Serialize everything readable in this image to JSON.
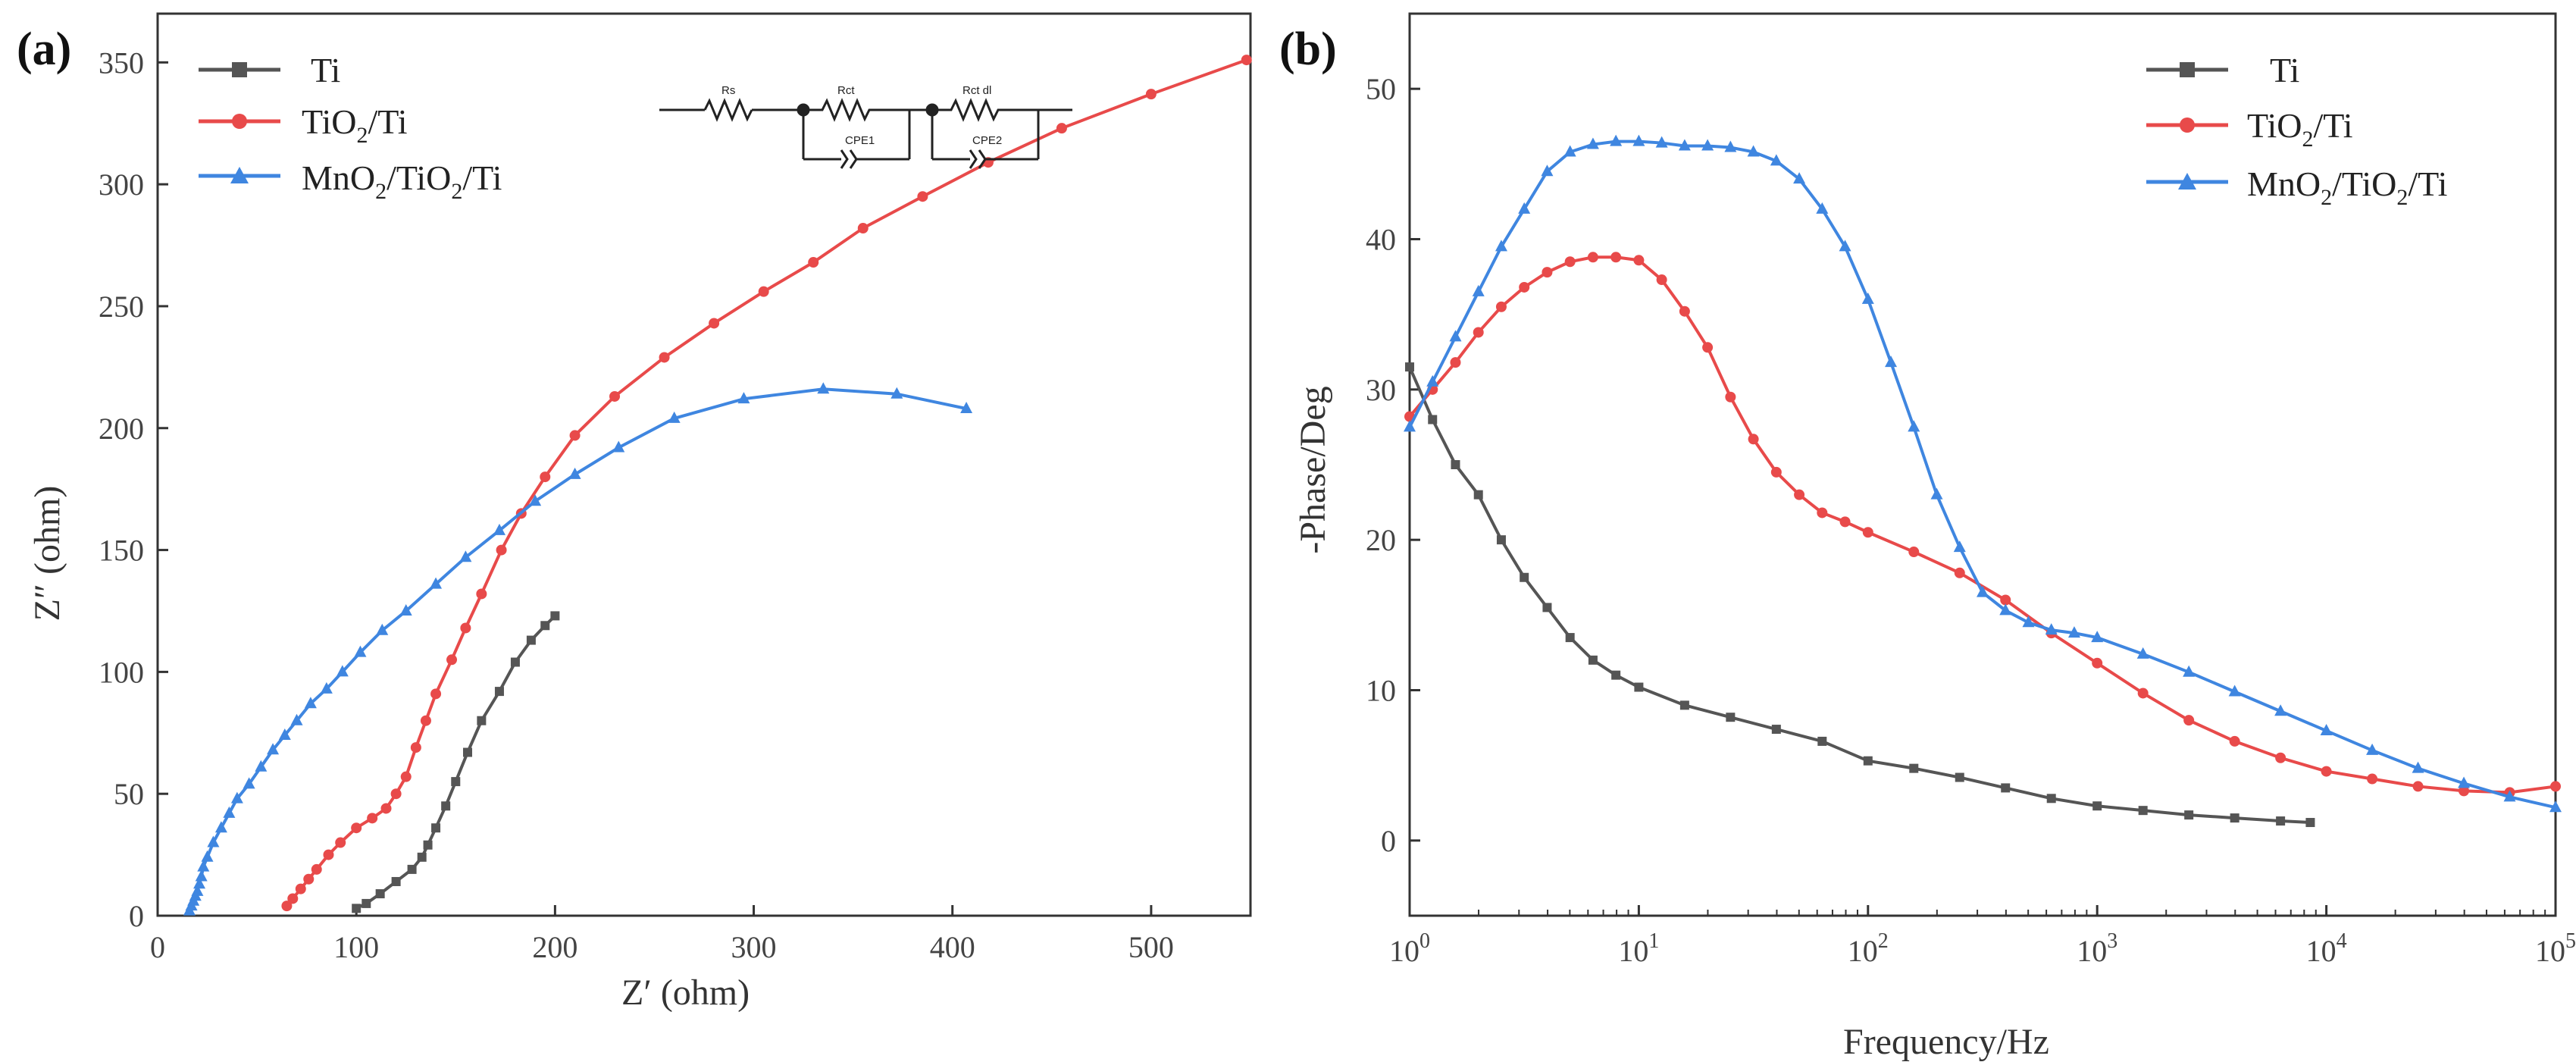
{
  "chart_data": [
    {
      "panel": "(a)",
      "type": "scatter",
      "subtype": "nyquist",
      "xlabel": "Z′ (ohm)",
      "ylabel": "Z″ (ohm)",
      "xlim": [
        0,
        550
      ],
      "ylim": [
        0,
        370
      ],
      "xticks": [
        "0",
        "100",
        "200",
        "300",
        "400",
        "500"
      ],
      "yticks": [
        "0",
        "50",
        "100",
        "150",
        "200",
        "250",
        "300",
        "350"
      ],
      "legend_position": "top-left",
      "circuit": {
        "labels": [
          "Rs",
          "Rct",
          "Rct dl",
          "CPE1",
          "CPE2"
        ]
      },
      "series": [
        {
          "name": "Ti",
          "name_base": "Ti",
          "name_rest": "",
          "color": "#555555",
          "marker": "square",
          "x": [
            100,
            105,
            112,
            120,
            128,
            133,
            136,
            140,
            145,
            150,
            156,
            163,
            172,
            180,
            188,
            195,
            200
          ],
          "y": [
            3,
            5,
            9,
            14,
            19,
            24,
            29,
            36,
            45,
            55,
            67,
            80,
            92,
            104,
            113,
            119,
            123
          ]
        },
        {
          "name": "TiO2/Ti",
          "name_base": "TiO",
          "name_rest": "/Ti",
          "color": "#e84a4a",
          "marker": "circle",
          "x": [
            65,
            68,
            72,
            76,
            80,
            86,
            92,
            100,
            108,
            115,
            120,
            125,
            130,
            135,
            140,
            148,
            155,
            163,
            173,
            183,
            195,
            210,
            230,
            255,
            280,
            305,
            330,
            355,
            385,
            418,
            455,
            500,
            548
          ],
          "y": [
            4,
            7,
            11,
            15,
            19,
            25,
            30,
            36,
            40,
            44,
            50,
            57,
            69,
            80,
            91,
            105,
            118,
            132,
            150,
            165,
            180,
            197,
            213,
            229,
            243,
            256,
            268,
            282,
            295,
            309,
            323,
            337,
            351
          ]
        },
        {
          "name": "MnO2/TiO2/Ti",
          "name_base": "MnO",
          "name_rest": "/TiO",
          "name_end": "/Ti",
          "color": "#3f86e0",
          "marker": "triangle",
          "x": [
            16,
            17,
            18,
            19,
            20,
            21,
            22,
            23,
            25,
            28,
            32,
            36,
            40,
            46,
            52,
            58,
            64,
            70,
            77,
            85,
            93,
            102,
            113,
            125,
            140,
            155,
            172,
            190,
            210,
            232,
            260,
            295,
            335,
            372,
            407
          ],
          "y": [
            2,
            4,
            6,
            8,
            10,
            13,
            16,
            20,
            24,
            30,
            36,
            42,
            48,
            54,
            61,
            68,
            74,
            80,
            87,
            93,
            100,
            108,
            117,
            125,
            136,
            147,
            158,
            170,
            181,
            192,
            204,
            212,
            216,
            214,
            208
          ]
        }
      ]
    },
    {
      "panel": "(b)",
      "type": "line",
      "subtype": "bode-phase",
      "xlabel": "Frequency/Hz",
      "ylabel": "-Phase/Deg",
      "xscale": "log",
      "xlim": [
        1,
        100000
      ],
      "ylim": [
        -5,
        55
      ],
      "xticks": [
        {
          "base": "10",
          "exp": "0"
        },
        {
          "base": "10",
          "exp": "1"
        },
        {
          "base": "10",
          "exp": "2"
        },
        {
          "base": "10",
          "exp": "3"
        },
        {
          "base": "10",
          "exp": "4"
        },
        {
          "base": "10",
          "exp": "5"
        }
      ],
      "yticks": [
        "0",
        "10",
        "20",
        "30",
        "40",
        "50"
      ],
      "legend_position": "top-right",
      "series": [
        {
          "name": "Ti",
          "color": "#555555",
          "marker": "square",
          "logf": [
            0,
            0.1,
            0.2,
            0.3,
            0.4,
            0.5,
            0.6,
            0.7,
            0.8,
            0.9,
            1.0,
            1.2,
            1.4,
            1.6,
            1.8,
            2.0,
            2.2,
            2.4,
            2.6,
            2.8,
            3.0,
            3.2,
            3.4,
            3.6,
            3.8,
            3.93
          ],
          "values": [
            31.5,
            28,
            25,
            23,
            20,
            17.5,
            15.5,
            13.5,
            12,
            11,
            10.2,
            9,
            8.2,
            7.4,
            6.6,
            5.3,
            4.8,
            4.2,
            3.5,
            2.8,
            2.3,
            2.0,
            1.7,
            1.5,
            1.3,
            1.2
          ]
        },
        {
          "name": "TiO2/Ti",
          "color": "#e84a4a",
          "marker": "circle",
          "logf": [
            0,
            0.1,
            0.2,
            0.3,
            0.4,
            0.5,
            0.6,
            0.7,
            0.8,
            0.9,
            1.0,
            1.1,
            1.2,
            1.3,
            1.4,
            1.5,
            1.6,
            1.7,
            1.8,
            1.9,
            2.0,
            2.2,
            2.4,
            2.6,
            2.8,
            3.0,
            3.2,
            3.4,
            3.6,
            3.8,
            4.0,
            4.2,
            4.4,
            4.6,
            4.8,
            5.0
          ],
          "values": [
            28.2,
            30,
            31.8,
            33.8,
            35.5,
            36.8,
            37.8,
            38.5,
            38.8,
            38.8,
            38.6,
            37.3,
            35.2,
            32.8,
            29.5,
            26.7,
            24.5,
            23,
            21.8,
            21.2,
            20.5,
            19.2,
            17.8,
            16,
            13.8,
            11.8,
            9.8,
            8,
            6.6,
            5.5,
            4.6,
            4.1,
            3.6,
            3.3,
            3.2,
            3.6
          ]
        },
        {
          "name": "MnO2/TiO2/Ti",
          "color": "#3f86e0",
          "marker": "triangle",
          "logf": [
            0,
            0.1,
            0.2,
            0.3,
            0.4,
            0.5,
            0.6,
            0.7,
            0.8,
            0.9,
            1.0,
            1.1,
            1.2,
            1.3,
            1.4,
            1.5,
            1.6,
            1.7,
            1.8,
            1.9,
            2.0,
            2.1,
            2.2,
            2.3,
            2.4,
            2.5,
            2.6,
            2.7,
            2.8,
            2.9,
            3.0,
            3.2,
            3.4,
            3.6,
            3.8,
            4.0,
            4.2,
            4.4,
            4.6,
            4.8,
            5.0
          ],
          "values": [
            27.5,
            30.5,
            33.5,
            36.5,
            39.5,
            42,
            44.5,
            45.8,
            46.3,
            46.5,
            46.5,
            46.4,
            46.2,
            46.2,
            46.1,
            45.8,
            45.2,
            44,
            42,
            39.5,
            36,
            31.8,
            27.5,
            23,
            19.5,
            16.5,
            15.3,
            14.5,
            14,
            13.8,
            13.5,
            12.4,
            11.2,
            9.9,
            8.6,
            7.3,
            6.0,
            4.8,
            3.8,
            2.9,
            2.2
          ]
        }
      ]
    }
  ]
}
